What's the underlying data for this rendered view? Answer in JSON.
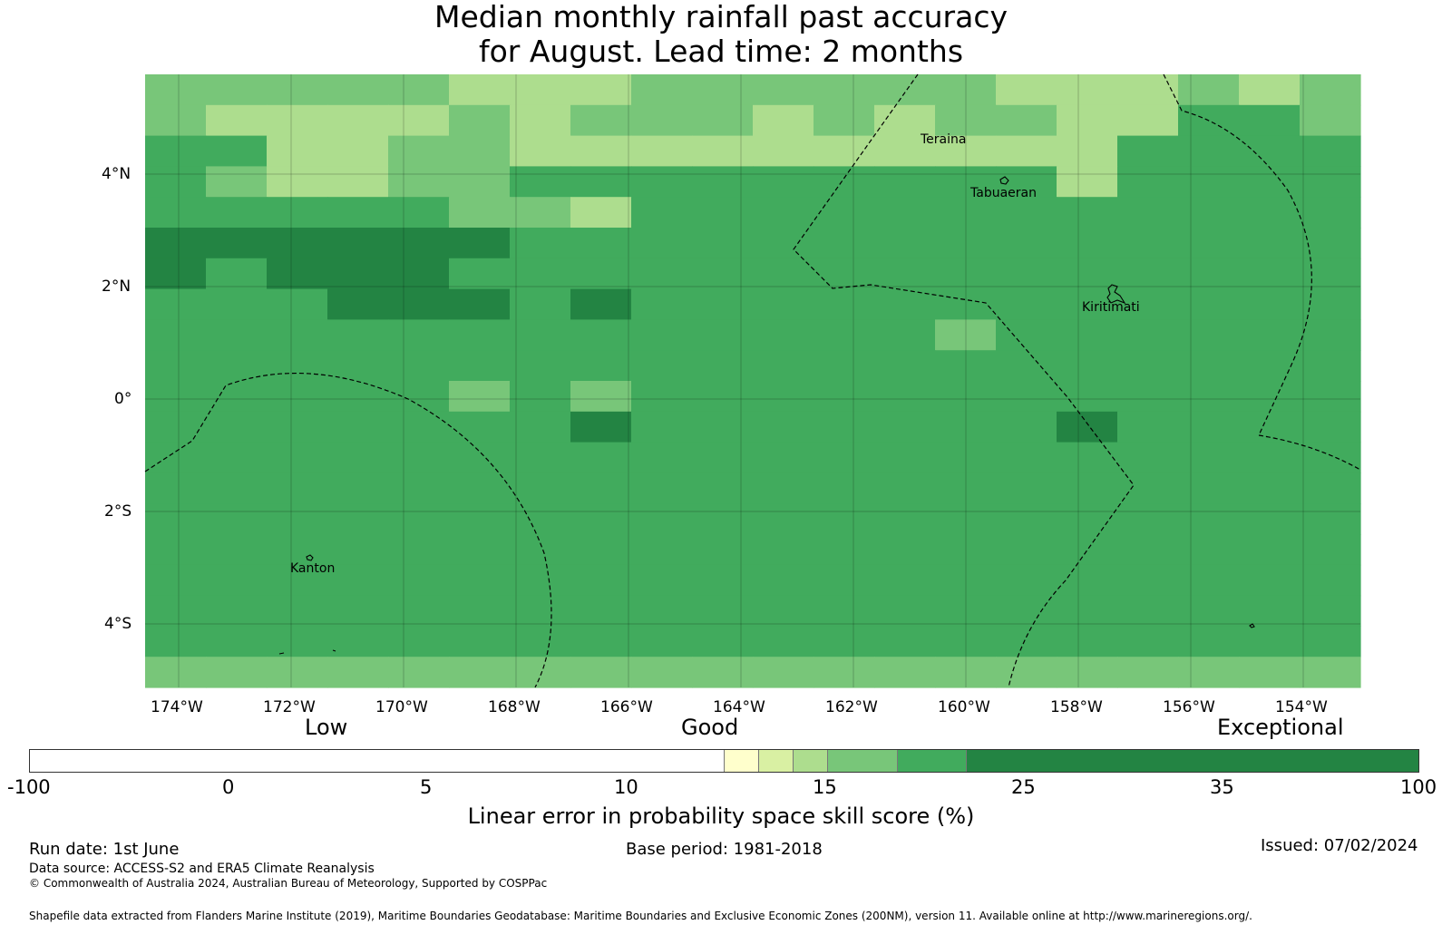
{
  "title_line1": "Median monthly rainfall past accuracy",
  "title_line2": "for August. Lead time: 2 months",
  "grid_lon": [
    "174°W",
    "172°W",
    "170°W",
    "168°W",
    "166°W",
    "164°W",
    "162°W",
    "160°W",
    "158°W",
    "156°W",
    "154°W"
  ],
  "grid_lat": [
    "4°N",
    "2°N",
    "0°",
    "2°S",
    "4°S"
  ],
  "places": {
    "teraina": "Teraina",
    "tabuaeran": "Tabuaeran",
    "kiritimati": "Kiritimati",
    "kanton": "Kanton"
  },
  "legend_words": {
    "low": "Low",
    "good": "Good",
    "exceptional": "Exceptional"
  },
  "colorbar": {
    "ticks": [
      "-100",
      "0",
      "5",
      "10",
      "15",
      "25",
      "35",
      "100"
    ],
    "colors": [
      "#ffffff",
      "#ffffcc",
      "#d9f0a3",
      "#addd8e",
      "#78c679",
      "#41ab5d",
      "#238443"
    ],
    "label": "Linear error in probability space skill score (%)"
  },
  "footer": {
    "run_date": "Run date: 1st June",
    "base_period": "Base period: 1981-2018",
    "issued": "Issued: 07/02/2024",
    "data_source": "Data source: ACCESS-S2 and ERA5 Climate Reanalysis",
    "copyright": "© Commonwealth of Australia 2024, Australian Bureau of Meteorology, Supported by COSPPac",
    "shapefile": "Shapefile data extracted from Flanders Marine Institute (2019), Maritime Boundaries Geodatabase: Maritime Boundaries and Exclusive Economic Zones (200NM), version 11. Available online at http://www.marineregions.org/."
  },
  "skill_grid": [
    "44444333444444333434",
    "43333434443434433554",
    "55334433333333335555",
    "54334455555555535555",
    "55555443555555555555",
    "66666655555555555555",
    "65666555555555555555",
    "55566656555555555555",
    "55555555555554555555",
    "55555555555555555555",
    "55555454555555555555",
    "55555556555555565555",
    "55555555555555555555",
    "55555555555555555555",
    "55555555555555555555",
    "55555555555555555555",
    "55555555555555555555",
    "55555555555555555555",
    "55555555555555555555",
    "44444444444444444444"
  ]
}
